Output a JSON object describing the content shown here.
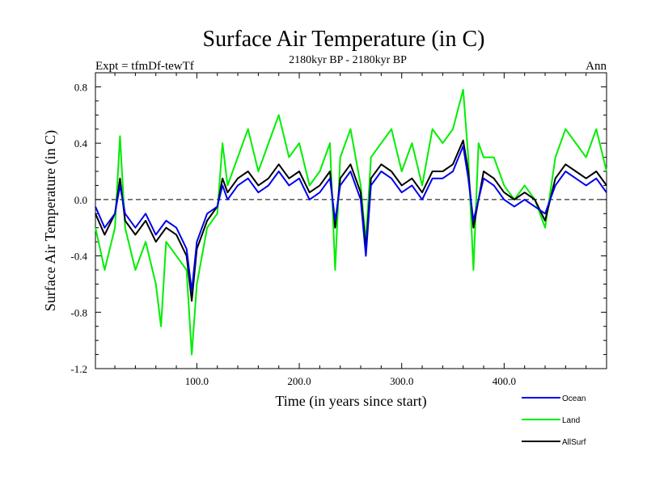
{
  "chart_data": {
    "type": "line",
    "title": "Surface Air Temperature (in C)",
    "subtitle": "2180kyr BP - 2180kyr BP",
    "top_left_label": "Expt = tfmDf-tewTf",
    "top_right_label": "Ann",
    "xlabel": "Time (in years since start)",
    "ylabel": "Surface Air Temperature (in C)",
    "xlim": [
      1,
      500
    ],
    "ylim": [
      -1.2,
      0.9
    ],
    "x_ticks": [
      {
        "value": 100,
        "label": "100.0"
      },
      {
        "value": 200,
        "label": "200.0"
      },
      {
        "value": 300,
        "label": "300.0"
      },
      {
        "value": 400,
        "label": "400.0"
      }
    ],
    "y_ticks": [
      {
        "value": 0.8,
        "label": "0.8"
      },
      {
        "value": 0.4,
        "label": "0.4"
      },
      {
        "value": 0.0,
        "label": "0.0"
      },
      {
        "value": -0.4,
        "label": "-0.4"
      },
      {
        "value": -0.8,
        "label": "-0.8"
      },
      {
        "value": -1.2,
        "label": "-1.2"
      }
    ],
    "zero_line": {
      "value": 0.0,
      "style": "dashed"
    },
    "legend_position": "bottom-right",
    "series": [
      {
        "name": "Land",
        "color": "#00ee00",
        "x": [
          1,
          10,
          20,
          25,
          30,
          40,
          50,
          60,
          65,
          70,
          80,
          90,
          95,
          100,
          110,
          120,
          125,
          130,
          140,
          150,
          160,
          170,
          180,
          190,
          200,
          210,
          220,
          230,
          235,
          240,
          250,
          260,
          265,
          270,
          280,
          290,
          300,
          310,
          320,
          330,
          340,
          350,
          360,
          365,
          370,
          375,
          380,
          390,
          400,
          410,
          420,
          430,
          440,
          450,
          460,
          470,
          480,
          490,
          500
        ],
        "y": [
          -0.2,
          -0.5,
          -0.2,
          0.45,
          -0.2,
          -0.5,
          -0.3,
          -0.6,
          -0.9,
          -0.3,
          -0.4,
          -0.5,
          -1.1,
          -0.6,
          -0.2,
          -0.1,
          0.4,
          0.1,
          0.3,
          0.5,
          0.2,
          0.4,
          0.6,
          0.3,
          0.4,
          0.1,
          0.2,
          0.4,
          -0.5,
          0.3,
          0.5,
          0.1,
          -0.3,
          0.3,
          0.4,
          0.5,
          0.2,
          0.4,
          0.1,
          0.5,
          0.4,
          0.5,
          0.78,
          0.3,
          -0.5,
          0.4,
          0.3,
          0.3,
          0.1,
          0.0,
          0.1,
          0.0,
          -0.2,
          0.3,
          0.5,
          0.4,
          0.3,
          0.5,
          0.2
        ]
      },
      {
        "name": "AllSurf",
        "color": "#000000",
        "x": [
          1,
          10,
          20,
          25,
          30,
          40,
          50,
          60,
          70,
          80,
          90,
          95,
          100,
          110,
          120,
          125,
          130,
          140,
          150,
          160,
          170,
          180,
          190,
          200,
          210,
          220,
          230,
          235,
          240,
          250,
          260,
          265,
          270,
          280,
          290,
          300,
          310,
          320,
          330,
          340,
          350,
          360,
          365,
          370,
          380,
          390,
          400,
          410,
          420,
          430,
          440,
          450,
          460,
          470,
          480,
          490,
          500
        ],
        "y": [
          -0.1,
          -0.25,
          -0.1,
          0.15,
          -0.15,
          -0.25,
          -0.15,
          -0.3,
          -0.2,
          -0.25,
          -0.4,
          -0.72,
          -0.35,
          -0.15,
          -0.05,
          0.15,
          0.05,
          0.15,
          0.2,
          0.1,
          0.15,
          0.25,
          0.15,
          0.2,
          0.05,
          0.1,
          0.2,
          -0.2,
          0.15,
          0.25,
          0.05,
          -0.35,
          0.15,
          0.25,
          0.2,
          0.1,
          0.15,
          0.05,
          0.2,
          0.2,
          0.25,
          0.42,
          0.2,
          -0.2,
          0.2,
          0.15,
          0.05,
          0.0,
          0.05,
          0.0,
          -0.15,
          0.15,
          0.25,
          0.2,
          0.15,
          0.2,
          0.1
        ]
      },
      {
        "name": "Ocean",
        "color": "#0000ee",
        "x": [
          1,
          10,
          20,
          25,
          30,
          40,
          50,
          60,
          70,
          80,
          90,
          95,
          100,
          110,
          120,
          125,
          130,
          140,
          150,
          160,
          170,
          180,
          190,
          200,
          210,
          220,
          230,
          235,
          240,
          250,
          260,
          265,
          270,
          280,
          290,
          300,
          310,
          320,
          330,
          340,
          350,
          360,
          365,
          370,
          380,
          390,
          400,
          410,
          420,
          430,
          440,
          450,
          460,
          470,
          480,
          490,
          500
        ],
        "y": [
          -0.05,
          -0.2,
          -0.1,
          0.1,
          -0.1,
          -0.2,
          -0.1,
          -0.25,
          -0.15,
          -0.2,
          -0.35,
          -0.65,
          -0.3,
          -0.1,
          -0.05,
          0.1,
          0.0,
          0.1,
          0.15,
          0.05,
          0.1,
          0.2,
          0.1,
          0.15,
          0.0,
          0.05,
          0.15,
          -0.15,
          0.1,
          0.2,
          0.0,
          -0.4,
          0.1,
          0.2,
          0.15,
          0.05,
          0.1,
          0.0,
          0.15,
          0.15,
          0.2,
          0.38,
          0.15,
          -0.15,
          0.15,
          0.1,
          0.0,
          -0.05,
          0.0,
          -0.05,
          -0.1,
          0.1,
          0.2,
          0.15,
          0.1,
          0.15,
          0.05
        ]
      }
    ]
  }
}
